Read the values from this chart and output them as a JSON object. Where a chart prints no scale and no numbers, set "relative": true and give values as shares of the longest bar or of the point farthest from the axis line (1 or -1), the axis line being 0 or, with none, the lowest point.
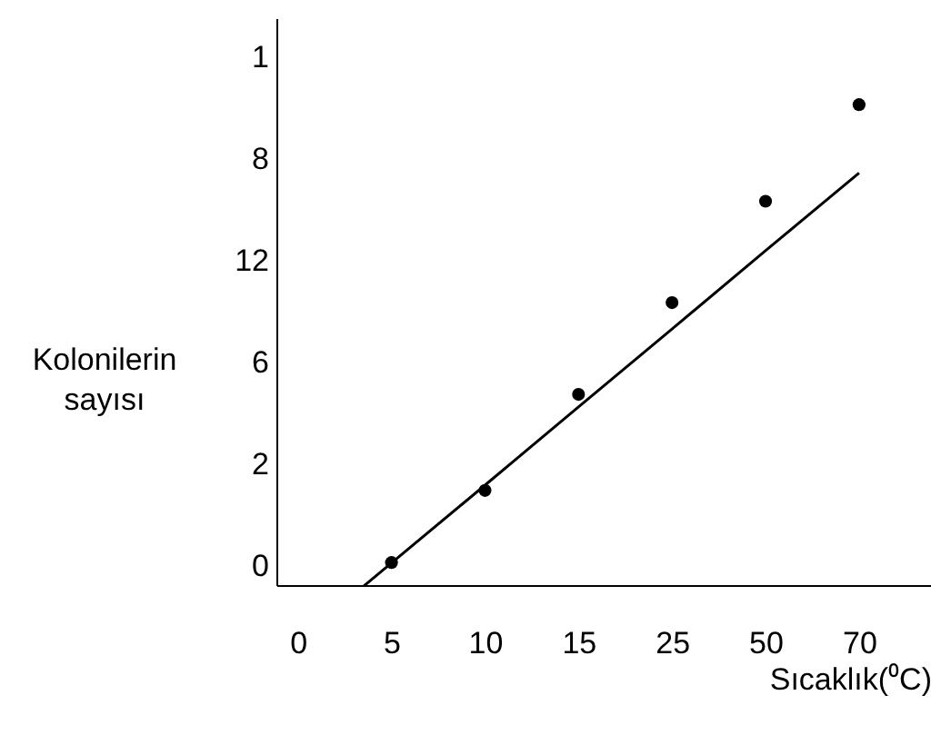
{
  "chart_data": {
    "type": "scatter",
    "xlabel": "Sıcaklık(⁰C)",
    "ylabel": "Kolonilerin sayısı",
    "relative": true,
    "categories": [
      "0",
      "5",
      "10",
      "15",
      "25",
      "50",
      "70"
    ],
    "y_categories": [
      "1",
      "8",
      "12",
      "6",
      "2",
      "0"
    ],
    "grid": false,
    "series": [
      {
        "color": "#000000",
        "marker": "circle",
        "values": [
          null,
          0.047,
          0.197,
          0.397,
          0.588,
          0.799,
          1
        ]
      },
      {
        "type": "line",
        "color": "#000000",
        "values": [
          -0.116,
          0.046,
          0.208,
          0.371,
          0.533,
          0.696,
          0.858
        ]
      }
    ]
  }
}
